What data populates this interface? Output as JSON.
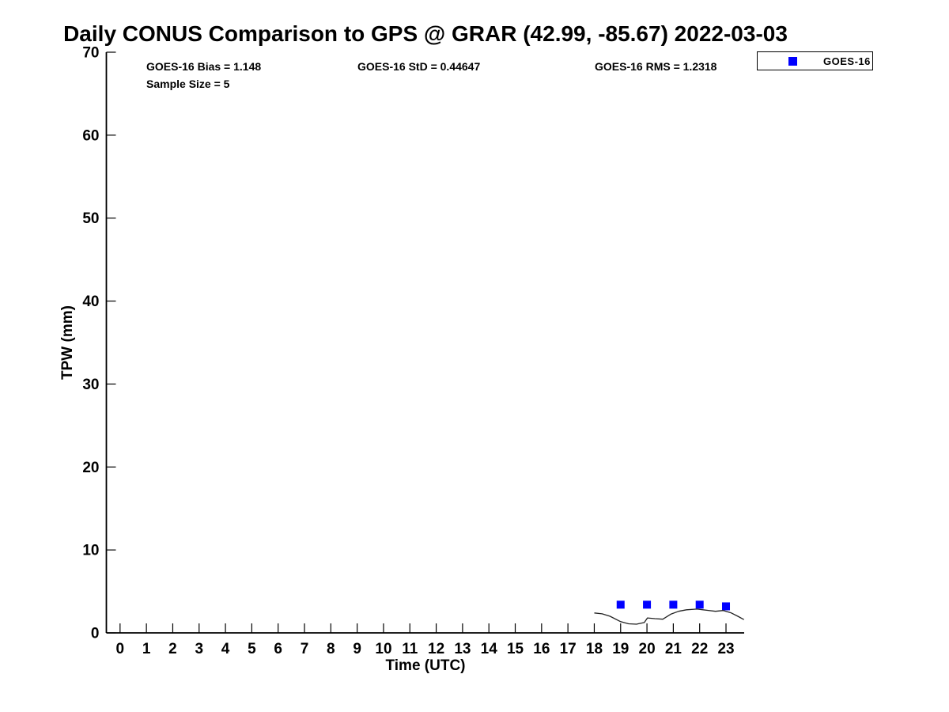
{
  "title": "Daily CONUS Comparison to GPS @ GRAR (42.99, -85.67) 2022-03-03",
  "stats": {
    "bias": "GOES-16 Bias = 1.148",
    "std": "GOES-16 StD = 0.44647",
    "rms": "GOES-16 RMS = 1.2318",
    "sample_size": "Sample Size = 5"
  },
  "legend": {
    "position": "outside-top-right",
    "items": [
      {
        "label": "GOES-16",
        "marker": "filled-square",
        "color": "#0000ff"
      }
    ]
  },
  "colors": {
    "background": "#ffffff",
    "axis": "#000000",
    "text": "#000000",
    "goes16_marker": "#0000ff",
    "gps_line": "#222222"
  },
  "chart_data": {
    "type": "line",
    "title": "Daily CONUS Comparison to GPS @ GRAR (42.99, -85.67) 2022-03-03",
    "xlabel": "Time (UTC)",
    "ylabel": "TPW (mm)",
    "xlim": [
      -0.52,
      23.69
    ],
    "ylim": [
      0,
      70
    ],
    "xticks": [
      0,
      1,
      2,
      3,
      4,
      5,
      6,
      7,
      8,
      9,
      10,
      11,
      12,
      13,
      14,
      15,
      16,
      17,
      18,
      19,
      20,
      21,
      22,
      23
    ],
    "yticks": [
      0,
      10,
      20,
      30,
      40,
      50,
      60,
      70
    ],
    "grid": false,
    "legend_position": "outside-top-right",
    "annotations": [
      "GOES-16 Bias = 1.148",
      "GOES-16 StD = 0.44647",
      "GOES-16 RMS = 1.2318",
      "Sample Size = 5"
    ],
    "series": [
      {
        "name": "GOES-16",
        "type": "scatter",
        "marker": "square",
        "marker_size": 10,
        "color": "#0000ff",
        "x": [
          19,
          20,
          21,
          22,
          23
        ],
        "y": [
          3.4,
          3.4,
          3.4,
          3.4,
          3.2
        ]
      },
      {
        "name": "GPS",
        "type": "line",
        "color": "#222222",
        "x": [
          18.0,
          18.3,
          18.6,
          19.0,
          19.3,
          19.6,
          19.9,
          20.02,
          20.3,
          20.6,
          20.9,
          21.2,
          21.5,
          21.9,
          22.3,
          22.6,
          22.9,
          23.2,
          23.45,
          23.68
        ],
        "y": [
          2.4,
          2.3,
          2.0,
          1.35,
          1.1,
          1.05,
          1.25,
          1.8,
          1.72,
          1.65,
          2.25,
          2.6,
          2.78,
          2.87,
          2.72,
          2.6,
          2.7,
          2.4,
          2.0,
          1.6
        ]
      }
    ]
  }
}
